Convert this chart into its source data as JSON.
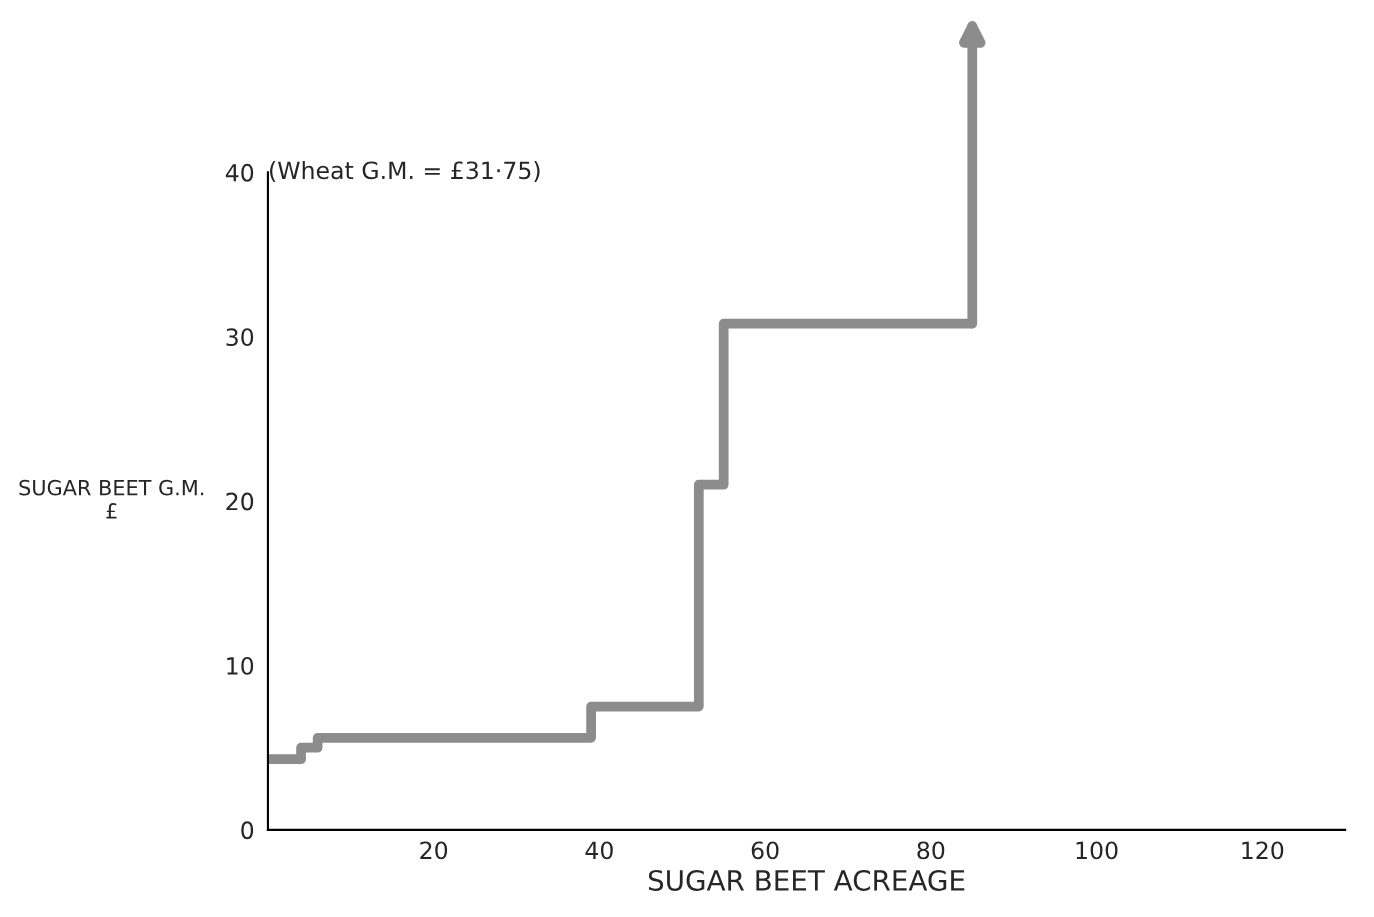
{
  "chart_data": {
    "type": "step",
    "x": [
      0,
      4,
      6,
      39,
      52,
      55,
      85
    ],
    "values": [
      4.3,
      5.0,
      5.6,
      7.5,
      21,
      30.8,
      30.8
    ],
    "color": "#8c8c8c",
    "xlabel": "SUGAR BEET ACREAGE",
    "ylabel": "SUGAR BEET G.M.\n£",
    "annotations": [
      "(Wheat G.M. = £31·75)"
    ],
    "xlim": [
      0,
      130
    ],
    "ylim": [
      0,
      40
    ],
    "xticks": [
      20,
      40,
      60,
      80,
      100,
      120
    ],
    "yticks": [
      0,
      10,
      20,
      30,
      40
    ],
    "grid": false,
    "legend": false
  }
}
